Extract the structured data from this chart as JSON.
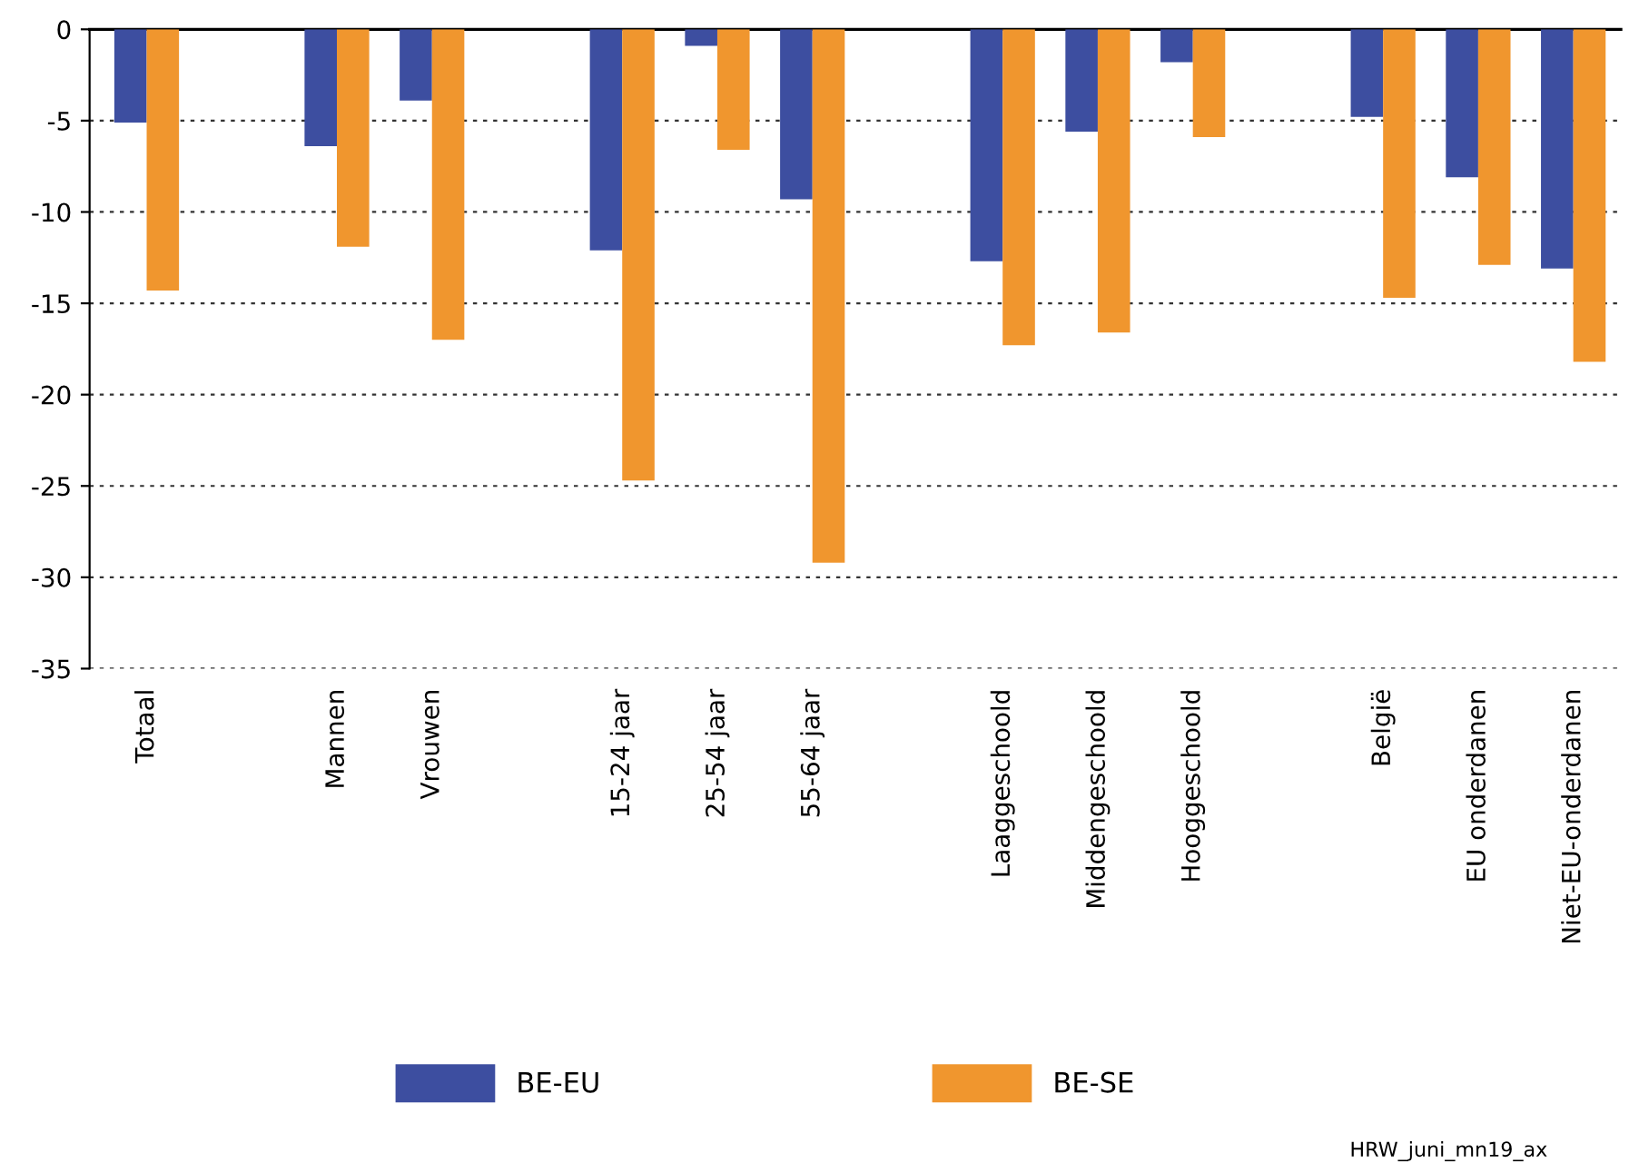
{
  "chart_data": {
    "type": "bar",
    "categories": [
      "Totaal",
      null,
      "Mannen",
      "Vrouwen",
      null,
      "15-24 jaar",
      "25-54 jaar",
      "55-64 jaar",
      null,
      "Laaggeschoold",
      "Middengeschoold",
      "Hooggeschoold",
      null,
      "België",
      "EU onderdanen",
      "Niet-EU-onderdanen"
    ],
    "series": [
      {
        "name": "BE-EU",
        "color": "#3d4ea0",
        "values": [
          -5.1,
          null,
          -6.4,
          -3.9,
          null,
          -12.1,
          -0.9,
          -9.3,
          null,
          -12.7,
          -5.6,
          -1.8,
          null,
          -4.8,
          -8.1,
          -13.1
        ]
      },
      {
        "name": "BE-SE",
        "color": "#f0962e",
        "values": [
          -14.3,
          null,
          -11.9,
          -17.0,
          null,
          -24.7,
          -6.6,
          -29.2,
          null,
          -17.3,
          -16.6,
          -5.9,
          null,
          -14.7,
          -12.9,
          -18.2
        ]
      }
    ],
    "ylim": [
      -35,
      0
    ],
    "yticks": [
      -35,
      -30,
      -25,
      -20,
      -15,
      -10,
      -5,
      0
    ],
    "grid": "y",
    "legend": "bottom",
    "annotations": [
      "HRW_juni_mn19_ax"
    ]
  }
}
